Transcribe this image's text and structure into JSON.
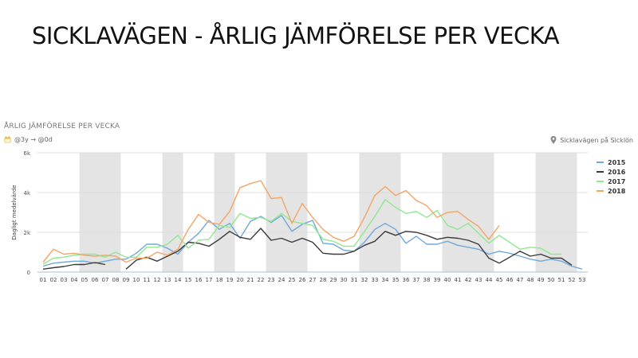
{
  "slide": {
    "title": "SICKLAVÄGEN - ÅRLIG JÄMFÖRELSE PER VECKA"
  },
  "widget": {
    "title": "ÅRLIG JÄMFÖRELSE PER VECKA",
    "range": "@3y → @0d",
    "location": "Sicklavägen på Sicklön",
    "calendar_icon_color": "#f2c14e",
    "pin_icon_color": "#8a8a8a"
  },
  "chart_data": {
    "type": "line",
    "title": "ÅRLIG JÄMFÖRELSE PER VECKA",
    "xlabel": "",
    "ylabel": "Dagligt medelvärde",
    "categories": [
      "01",
      "02",
      "03",
      "04",
      "05",
      "06",
      "07",
      "08",
      "09",
      "10",
      "11",
      "12",
      "13",
      "14",
      "15",
      "16",
      "17",
      "18",
      "19",
      "20",
      "21",
      "22",
      "23",
      "24",
      "25",
      "26",
      "27",
      "28",
      "29",
      "30",
      "31",
      "32",
      "33",
      "34",
      "35",
      "36",
      "37",
      "38",
      "39",
      "40",
      "41",
      "42",
      "43",
      "44",
      "45",
      "46",
      "47",
      "48",
      "49",
      "50",
      "51",
      "52",
      "53"
    ],
    "y_ticks": [
      0,
      2000,
      4000,
      6000
    ],
    "y_tick_labels": [
      "0",
      "2k",
      "4k",
      "6k"
    ],
    "ylim": [
      0,
      6000
    ],
    "shaded_week_ranges": [
      [
        "05",
        "08"
      ],
      [
        "13",
        "14"
      ],
      [
        "18",
        "19"
      ],
      [
        "23",
        "26"
      ],
      [
        "32",
        "35"
      ],
      [
        "40",
        "44"
      ],
      [
        "49",
        "52"
      ]
    ],
    "legend_position": "right",
    "grid": "horizontal",
    "series": [
      {
        "name": "2015",
        "color": "#6fa8dc",
        "values": [
          300,
          450,
          500,
          550,
          550,
          450,
          550,
          650,
          650,
          950,
          1400,
          1400,
          1200,
          900,
          1500,
          1950,
          2600,
          2150,
          2450,
          1700,
          2550,
          2800,
          2500,
          2850,
          2050,
          2400,
          2600,
          1450,
          1400,
          1100,
          1050,
          1500,
          2150,
          2450,
          2150,
          1450,
          1800,
          1400,
          1400,
          1550,
          1350,
          1250,
          1150,
          900,
          1050,
          950,
          800,
          650,
          550,
          650,
          550,
          300,
          150
        ]
      },
      {
        "name": "2016",
        "color": "#3a3a3a",
        "values": [
          150,
          220,
          280,
          380,
          380,
          480,
          380,
          null,
          150,
          600,
          750,
          550,
          800,
          1050,
          1500,
          1450,
          1300,
          1650,
          2050,
          1750,
          1650,
          2200,
          1600,
          1700,
          1500,
          1700,
          1500,
          950,
          900,
          900,
          1050,
          1350,
          1550,
          2050,
          1850,
          2050,
          2000,
          1850,
          1650,
          1750,
          1700,
          1600,
          1400,
          700,
          450,
          750,
          1050,
          800,
          900,
          700,
          700,
          350,
          null
        ]
      },
      {
        "name": "2017",
        "color": "#90e890",
        "values": [
          400,
          700,
          750,
          850,
          900,
          900,
          750,
          1000,
          750,
          750,
          1250,
          1250,
          1400,
          1850,
          1200,
          1600,
          1650,
          2350,
          2250,
          2950,
          2700,
          2750,
          2550,
          2950,
          2550,
          2450,
          2350,
          1650,
          1550,
          1300,
          1300,
          2050,
          2800,
          3650,
          3250,
          2950,
          3050,
          2750,
          3100,
          2350,
          2150,
          2450,
          1950,
          1450,
          1850,
          1500,
          1150,
          1250,
          1200,
          900,
          900,
          null,
          null
        ]
      },
      {
        "name": "2018",
        "color": "#f4a565",
        "values": [
          500,
          1150,
          900,
          950,
          850,
          800,
          850,
          800,
          500,
          700,
          700,
          1000,
          850,
          1150,
          2150,
          2900,
          2500,
          2400,
          3050,
          4250,
          4450,
          4600,
          3700,
          3750,
          2450,
          3450,
          2750,
          2150,
          1750,
          1550,
          1800,
          2750,
          3850,
          4300,
          3850,
          4100,
          3600,
          3350,
          2750,
          3000,
          3050,
          2650,
          2300,
          1650,
          2350,
          null,
          null,
          null,
          null,
          null,
          null,
          null,
          null
        ]
      }
    ]
  }
}
